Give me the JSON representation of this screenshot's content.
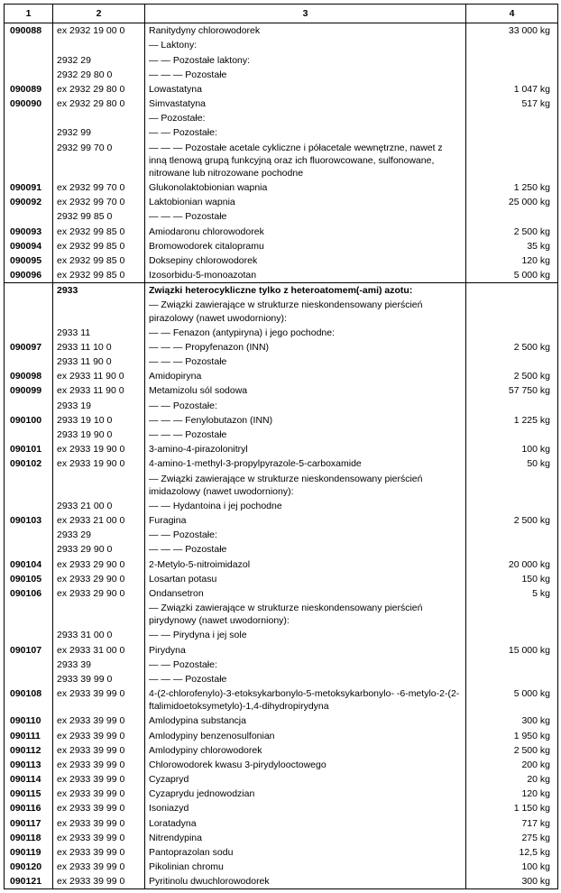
{
  "headers": [
    "1",
    "2",
    "3",
    "4"
  ],
  "rows": [
    {
      "c1": "090088",
      "c2": "ex 2932 19 00 0",
      "c3": "Ranitydyny chlorowodorek",
      "c4": "33 000 kg"
    },
    {
      "c3": "— Laktony:"
    },
    {
      "c2": "2932 29",
      "c3": "— — Pozostałe laktony:"
    },
    {
      "c2": "2932 29 80 0",
      "c3": "— — — Pozostałe"
    },
    {
      "c1": "090089",
      "c2": "ex 2932 29 80 0",
      "c3": "Lowastatyna",
      "c4": "1 047 kg"
    },
    {
      "c1": "090090",
      "c2": "ex 2932 29 80 0",
      "c3": "Simvastatyna",
      "c4": "517 kg"
    },
    {
      "c3": "— Pozostałe:"
    },
    {
      "c2": "2932 99",
      "c3": "— — Pozostałe:"
    },
    {
      "c2": "2932 99 70 0",
      "c3": "— — — Pozostałe acetale cykliczne i półacetale wewnętrzne, nawet z inną tlenową grupą funkcyjną oraz ich fluorowcowane, sulfonowane, nitrowane lub nitrozowane pochodne"
    },
    {
      "c1": "090091",
      "c2": "ex 2932 99 70 0",
      "c3": "Glukonolaktobionian wapnia",
      "c4": "1 250 kg"
    },
    {
      "c1": "090092",
      "c2": "ex 2932 99 70 0",
      "c3": "Laktobionian wapnia",
      "c4": "25 000 kg"
    },
    {
      "c2": "2932 99 85 0",
      "c3": "— — — Pozostałe"
    },
    {
      "c1": "090093",
      "c2": "ex 2932 99 85 0",
      "c3": "Amiodaronu chlorowodorek",
      "c4": "2 500 kg"
    },
    {
      "c1": "090094",
      "c2": "ex 2932 99 85 0",
      "c3": "Bromowodorek citalopramu",
      "c4": "35 kg"
    },
    {
      "c1": "090095",
      "c2": "ex 2932 99 85 0",
      "c3": "Doksepiny chlorowodorek",
      "c4": "120 kg"
    },
    {
      "c1": "090096",
      "c2": "ex 2932 99 85 0",
      "c3": "Izosorbidu-5-monoazotan",
      "c4": "5 000 kg"
    },
    {
      "sep": true
    },
    {
      "c2": "2933",
      "c2_bold": true,
      "c3": "Związki heterocykliczne tylko z heteroatomem(-ami) azotu:",
      "c3_bold": true
    },
    {
      "c3": "— Związki zawierające w strukturze nieskondensowany pierścień pirazolowy (nawet uwodorniony):"
    },
    {
      "c2": "2933 11",
      "c3": "— — Fenazon (antypiryna) i jego pochodne:"
    },
    {
      "c1": "090097",
      "c2": "2933 11 10 0",
      "c3": "— — — Propyfenazon (INN)",
      "c4": "2 500 kg"
    },
    {
      "c2": "2933 11 90 0",
      "c3": "— — — Pozostałe"
    },
    {
      "c1": "090098",
      "c2": "ex 2933 11 90 0",
      "c3": "Amidopiryna",
      "c4": "2 500 kg"
    },
    {
      "c1": "090099",
      "c2": "ex 2933 11 90 0",
      "c3": "Metamizolu sól sodowa",
      "c4": "57 750 kg"
    },
    {
      "c2": "2933 19",
      "c3": "— — Pozostałe:"
    },
    {
      "c1": "090100",
      "c2": "2933 19 10 0",
      "c3": "— — — Fenylobutazon (INN)",
      "c4": "1 225 kg"
    },
    {
      "c2": "2933 19 90 0",
      "c3": "— — — Pozostałe"
    },
    {
      "c1": "090101",
      "c2": "ex 2933 19 90 0",
      "c3": "3-amino-4-pirazolonitryl",
      "c4": "100 kg"
    },
    {
      "c1": "090102",
      "c2": "ex 2933 19 90 0",
      "c3": "4-amino-1-methyl-3-propylpyrazole-5-carboxamide",
      "c4": "50 kg"
    },
    {
      "c3": "— Związki zawierające w strukturze nieskondensowany pierścień imidazolowy (nawet uwodorniony):"
    },
    {
      "c2": "2933 21 00 0",
      "c3": "— — Hydantoina i jej pochodne"
    },
    {
      "c1": "090103",
      "c2": "ex 2933 21 00 0",
      "c3": "Furagina",
      "c4": "2 500 kg"
    },
    {
      "c2": "2933 29",
      "c3": "— — Pozostałe:"
    },
    {
      "c2": "2933 29 90 0",
      "c3": "— — — Pozostałe"
    },
    {
      "c1": "090104",
      "c2": "ex 2933 29 90 0",
      "c3": "2-Metylo-5-nitroimidazol",
      "c4": "20 000 kg"
    },
    {
      "c1": "090105",
      "c2": "ex 2933 29 90 0",
      "c3": "Losartan potasu",
      "c4": "150 kg"
    },
    {
      "c1": "090106",
      "c2": "ex 2933 29 90 0",
      "c3": "Ondansetron",
      "c4": "5 kg"
    },
    {
      "c3": "— Związki zawierające w strukturze nieskondensowany pierścień pirydynowy (nawet uwodorniony):"
    },
    {
      "c2": "2933 31 00 0",
      "c3": "— — Pirydyna i jej sole"
    },
    {
      "c1": "090107",
      "c2": "ex 2933 31 00 0",
      "c3": "Pirydyna",
      "c4": "15 000 kg"
    },
    {
      "c2": "2933 39",
      "c3": "— — Pozostałe:"
    },
    {
      "c2": "2933 39 99 0",
      "c3": "— — — Pozostałe"
    },
    {
      "c1": "090108",
      "c2": "ex 2933 39 99 0",
      "c3": "4-(2-chlorofenylo)-3-etoksykarbonylo-5-metoksykarbonylo- -6-metylo-2-(2-ftalimidoetoksymetylo)-1,4-dihydropirydyna",
      "c4": "5 000 kg"
    },
    {
      "c1": "090110",
      "c2": "ex 2933 39 99 0",
      "c3": "Amlodypina substancja",
      "c4": "300 kg"
    },
    {
      "c1": "090111",
      "c2": "ex 2933 39 99 0",
      "c3": "Amlodypiny benzenosulfonian",
      "c4": "1 950 kg"
    },
    {
      "c1": "090112",
      "c2": "ex 2933 39 99 0",
      "c3": "Amlodypiny chlorowodorek",
      "c4": "2 500 kg"
    },
    {
      "c1": "090113",
      "c2": "ex 2933 39 99 0",
      "c3": "Chlorowodorek kwasu 3-pirydylooctowego",
      "c4": "200 kg"
    },
    {
      "c1": "090114",
      "c2": "ex 2933 39 99 0",
      "c3": "Cyzapryd",
      "c4": "20 kg"
    },
    {
      "c1": "090115",
      "c2": "ex 2933 39 99 0",
      "c3": "Cyzaprydu jednowodzian",
      "c4": "120 kg"
    },
    {
      "c1": "090116",
      "c2": "ex 2933 39 99 0",
      "c3": "Isoniazyd",
      "c4": "1 150 kg"
    },
    {
      "c1": "090117",
      "c2": "ex 2933 39 99 0",
      "c3": "Loratadyna",
      "c4": "717 kg"
    },
    {
      "c1": "090118",
      "c2": "ex 2933 39 99 0",
      "c3": "Nitrendypina",
      "c4": "275 kg"
    },
    {
      "c1": "090119",
      "c2": "ex 2933 39 99 0",
      "c3": "Pantoprazolan sodu",
      "c4": "12,5 kg"
    },
    {
      "c1": "090120",
      "c2": "ex 2933 39 99 0",
      "c3": "Pikolinian chromu",
      "c4": "100 kg"
    },
    {
      "c1": "090121",
      "c2": "ex 2933 39 99 0",
      "c3": "Pyritinolu dwuchlorowodorek",
      "c4": "300 kg"
    }
  ]
}
